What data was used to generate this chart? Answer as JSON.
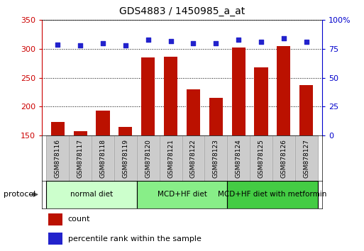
{
  "title": "GDS4883 / 1450985_a_at",
  "samples": [
    "GSM878116",
    "GSM878117",
    "GSM878118",
    "GSM878119",
    "GSM878120",
    "GSM878121",
    "GSM878122",
    "GSM878123",
    "GSM878124",
    "GSM878125",
    "GSM878126",
    "GSM878127"
  ],
  "counts": [
    174,
    157,
    193,
    165,
    285,
    286,
    230,
    215,
    302,
    268,
    305,
    238
  ],
  "percentile_ranks": [
    79,
    78,
    80,
    78,
    83,
    82,
    80,
    80,
    83,
    81,
    84,
    81
  ],
  "bar_color": "#bb1100",
  "dot_color": "#2222cc",
  "ylim_left": [
    150,
    350
  ],
  "ylim_right": [
    0,
    100
  ],
  "yticks_left": [
    150,
    200,
    250,
    300,
    350
  ],
  "yticks_right": [
    0,
    25,
    50,
    75,
    100
  ],
  "groups": [
    {
      "label": "normal diet",
      "start": 0,
      "end": 4,
      "color": "#ccffcc"
    },
    {
      "label": "MCD+HF diet",
      "start": 4,
      "end": 8,
      "color": "#88ee88"
    },
    {
      "label": "MCD+HF diet with metformin",
      "start": 8,
      "end": 12,
      "color": "#44cc44"
    }
  ],
  "protocol_label": "protocol",
  "legend_items": [
    {
      "color": "#bb1100",
      "label": "count"
    },
    {
      "color": "#2222cc",
      "label": "percentile rank within the sample"
    }
  ],
  "left_axis_color": "#cc0000",
  "right_axis_color": "#0000cc",
  "sample_box_color": "#cccccc",
  "sample_box_edge": "#aaaaaa"
}
